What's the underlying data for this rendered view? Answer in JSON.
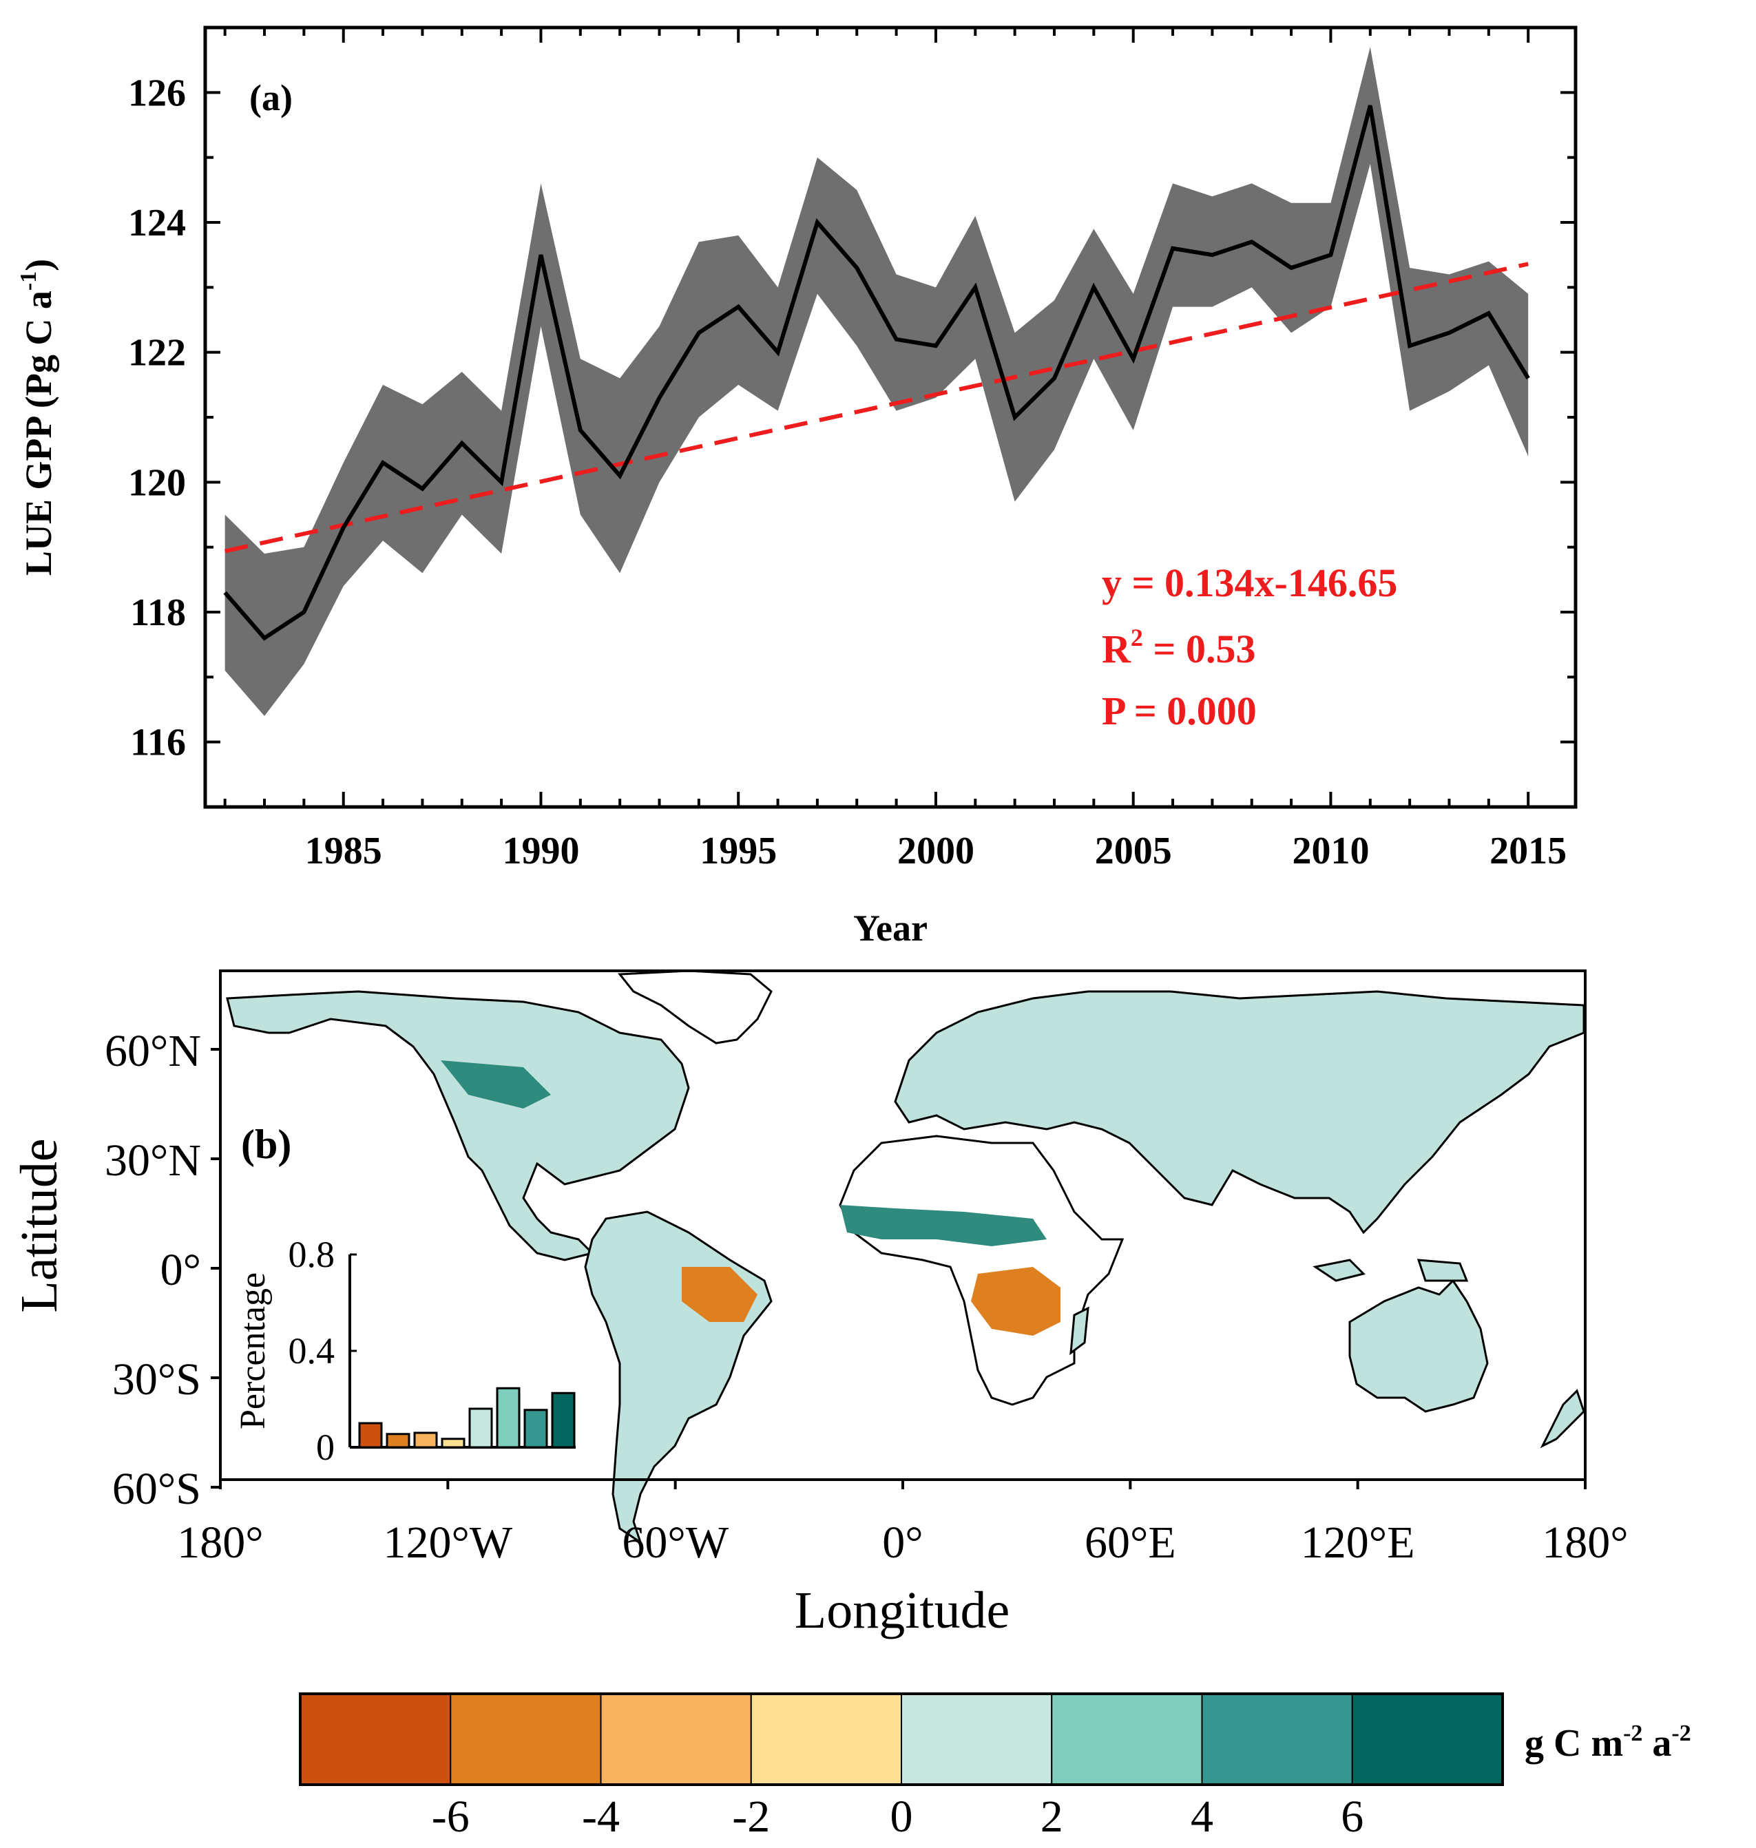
{
  "figure": "LUE GPP time series and trend map",
  "panel_a": {
    "label": "(a)",
    "chart_data": {
      "type": "line",
      "ylabel_main": "LUE GPP (Pg C a",
      "ylabel_sup": "-1",
      "ylabel_close": ")",
      "xlabel": "Year",
      "xlim": [
        1981.5,
        2016.2
      ],
      "ylim": [
        115,
        127
      ],
      "xticks": [
        1985,
        1990,
        1995,
        2000,
        2005,
        2010,
        2015
      ],
      "yticks": [
        116,
        118,
        120,
        122,
        124,
        126
      ],
      "x": [
        1982,
        1983,
        1984,
        1985,
        1986,
        1987,
        1988,
        1989,
        1990,
        1991,
        1992,
        1993,
        1994,
        1995,
        1996,
        1997,
        1998,
        1999,
        2000,
        2001,
        2002,
        2003,
        2004,
        2005,
        2006,
        2007,
        2008,
        2009,
        2010,
        2011,
        2012,
        2013,
        2014,
        2015
      ],
      "series": [
        {
          "name": "LUE GPP",
          "color": "#000000",
          "values": [
            118.3,
            117.6,
            118.0,
            119.3,
            120.3,
            119.9,
            120.6,
            120.0,
            123.5,
            120.8,
            120.1,
            121.3,
            122.3,
            122.7,
            122.0,
            124.0,
            123.3,
            122.2,
            122.1,
            123.0,
            121.0,
            121.6,
            123.0,
            121.9,
            123.6,
            123.5,
            123.7,
            123.3,
            123.5,
            125.8,
            122.1,
            122.3,
            122.6,
            121.6
          ],
          "upper": [
            119.5,
            118.9,
            119.0,
            120.3,
            121.5,
            121.2,
            121.7,
            121.1,
            124.6,
            121.9,
            121.6,
            122.4,
            123.7,
            123.8,
            123.0,
            125.0,
            124.5,
            123.2,
            123.0,
            124.1,
            122.3,
            122.8,
            123.9,
            122.9,
            124.6,
            124.4,
            124.6,
            124.3,
            124.3,
            126.7,
            123.3,
            123.2,
            123.4,
            122.9
          ],
          "lower": [
            117.1,
            116.4,
            117.2,
            118.4,
            119.1,
            118.6,
            119.5,
            118.9,
            122.4,
            119.5,
            118.6,
            120.0,
            121.0,
            121.5,
            121.1,
            122.9,
            122.1,
            121.1,
            121.3,
            121.9,
            119.7,
            120.5,
            121.9,
            120.8,
            122.7,
            122.7,
            123.0,
            122.3,
            122.7,
            124.9,
            121.1,
            121.4,
            121.8,
            120.4
          ]
        }
      ],
      "band_color": "#6f6f6f",
      "trend": {
        "slope": 0.134,
        "intercept": -146.65,
        "color": "#ee1c1c"
      },
      "annotation": {
        "line1": "y = 0.134x-146.65",
        "line2_main": "R",
        "line2_sup": "2",
        "line2_rest": " = 0.53",
        "line3": "P = 0.000"
      }
    }
  },
  "panel_b": {
    "label": "(b)",
    "xlabel": "Longitude",
    "ylabel": "Latitude",
    "lon_ticks": [
      "180°",
      "120°W",
      "60°W",
      "0°",
      "60°E",
      "120°E",
      "180°"
    ],
    "lat_ticks": [
      "60°N",
      "30°N",
      "0°",
      "30°S",
      "60°S"
    ],
    "inset": {
      "chart_data": {
        "type": "bar",
        "ylabel": "Percentage",
        "yticks": [
          "0",
          "0.4",
          "0.8"
        ],
        "ylim": [
          0,
          0.8
        ],
        "values": [
          0.1,
          0.055,
          0.06,
          0.035,
          0.16,
          0.245,
          0.155,
          0.225
        ],
        "colors": [
          "#cc5010",
          "#de8020",
          "#f7b35e",
          "#fddf93",
          "#c5e7df",
          "#7fcdbb",
          "#35978f",
          "#01665e"
        ]
      }
    }
  },
  "colorbar": {
    "unit_main": "g C m",
    "unit_sup1": "-2",
    "unit_mid": " a",
    "unit_sup2": "-2",
    "ticks": [
      "-6",
      "-4",
      "-2",
      "0",
      "2",
      "4",
      "6"
    ],
    "colors": [
      "#cc5010",
      "#de8020",
      "#f7b35e",
      "#fddf93",
      "#c5e7df",
      "#7fcdbb",
      "#35978f",
      "#01665e"
    ]
  }
}
